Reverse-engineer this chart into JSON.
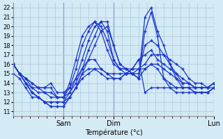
{
  "title": "Température (°c)",
  "ylabel_ticks": [
    11,
    12,
    13,
    14,
    15,
    16,
    17,
    18,
    19,
    20,
    21,
    22
  ],
  "ylim": [
    10.5,
    22.5
  ],
  "xlim": [
    0,
    96
  ],
  "x_ticks": [
    24,
    48,
    96
  ],
  "x_tick_labels": [
    "Sam",
    "Dim",
    "Lun"
  ],
  "background_color": "#d4eaf5",
  "grid_color": "#a8c8dc",
  "line_color": "#1a35cc",
  "marker": "+",
  "series": [
    {
      "x": [
        0,
        3,
        6,
        9,
        12,
        15,
        18,
        21,
        24,
        27,
        30,
        33,
        36,
        39,
        42,
        45,
        48,
        51,
        54,
        57,
        60,
        63,
        66,
        69,
        72,
        75,
        78,
        81,
        84,
        87,
        90,
        93,
        96
      ],
      "y": [
        16.0,
        15.0,
        14.5,
        14.0,
        13.5,
        13.5,
        14.0,
        13.0,
        13.0,
        13.5,
        14.5,
        15.5,
        17.5,
        19.0,
        20.5,
        20.5,
        18.0,
        16.0,
        15.5,
        15.0,
        14.5,
        21.0,
        22.0,
        19.5,
        18.0,
        16.0,
        14.5,
        13.5,
        13.5,
        13.0,
        13.0,
        13.0,
        13.5
      ]
    },
    {
      "x": [
        0,
        3,
        6,
        9,
        12,
        15,
        18,
        21,
        24,
        27,
        30,
        33,
        36,
        39,
        42,
        45,
        48,
        51,
        54,
        57,
        60,
        63,
        66,
        69,
        72,
        75,
        78,
        81,
        84,
        87,
        90,
        93,
        96
      ],
      "y": [
        16.0,
        15.0,
        14.5,
        13.5,
        13.5,
        13.5,
        13.5,
        12.5,
        12.5,
        14.0,
        16.5,
        19.0,
        20.0,
        20.5,
        20.0,
        18.5,
        16.5,
        15.5,
        15.0,
        15.0,
        15.0,
        18.0,
        18.5,
        18.0,
        17.0,
        16.0,
        15.0,
        14.0,
        14.0,
        13.5,
        13.5,
        13.5,
        13.5
      ]
    },
    {
      "x": [
        0,
        3,
        6,
        9,
        12,
        15,
        18,
        21,
        24,
        27,
        30,
        33,
        36,
        39,
        42,
        45,
        48,
        51,
        54,
        57,
        60,
        63,
        66,
        69,
        72,
        75,
        78,
        81,
        84,
        87,
        90,
        93,
        96
      ],
      "y": [
        16.0,
        15.0,
        14.0,
        13.5,
        13.0,
        13.0,
        13.0,
        12.5,
        12.5,
        13.5,
        15.5,
        18.0,
        19.5,
        20.5,
        19.5,
        17.5,
        16.0,
        15.5,
        15.5,
        15.5,
        15.5,
        15.5,
        16.0,
        16.0,
        15.5,
        15.0,
        14.5,
        14.0,
        14.0,
        13.5,
        13.5,
        13.5,
        14.0
      ]
    },
    {
      "x": [
        0,
        3,
        6,
        9,
        12,
        15,
        18,
        21,
        24,
        27,
        30,
        33,
        36,
        39,
        42,
        45,
        48,
        51,
        54,
        57,
        60,
        63,
        66,
        69,
        72,
        75,
        78,
        81,
        84,
        87,
        90,
        93,
        96
      ],
      "y": [
        16.0,
        15.0,
        14.0,
        13.0,
        12.5,
        12.0,
        12.0,
        12.0,
        12.0,
        13.0,
        14.0,
        15.5,
        16.5,
        16.5,
        15.5,
        15.0,
        15.0,
        15.0,
        15.0,
        15.0,
        15.5,
        16.0,
        17.0,
        17.0,
        17.0,
        16.5,
        16.0,
        15.5,
        14.5,
        14.0,
        14.0,
        13.5,
        14.0
      ]
    },
    {
      "x": [
        0,
        3,
        6,
        9,
        12,
        15,
        18,
        21,
        24,
        27,
        30,
        33,
        36,
        39,
        42,
        45,
        48,
        51,
        54,
        57,
        60,
        63,
        66,
        69,
        72,
        75,
        78,
        81,
        84,
        87,
        90,
        93,
        96
      ],
      "y": [
        16.0,
        15.0,
        14.0,
        13.0,
        12.5,
        12.0,
        11.5,
        11.5,
        11.5,
        12.5,
        13.5,
        15.0,
        15.5,
        15.5,
        15.0,
        14.5,
        14.5,
        14.5,
        15.0,
        15.5,
        16.5,
        17.0,
        17.5,
        16.5,
        16.0,
        15.5,
        15.0,
        14.5,
        14.0,
        13.5,
        13.5,
        13.5,
        14.0
      ]
    },
    {
      "x": [
        0,
        3,
        6,
        9,
        12,
        15,
        18,
        21,
        24,
        27,
        30,
        33,
        36,
        39,
        42,
        45,
        48,
        51,
        54,
        57,
        60,
        63,
        66,
        69,
        72,
        75,
        78,
        81,
        84,
        87,
        90,
        93,
        96
      ],
      "y": [
        16.0,
        15.0,
        14.0,
        13.0,
        12.5,
        12.0,
        11.5,
        11.5,
        11.5,
        12.5,
        13.5,
        14.5,
        15.0,
        15.5,
        15.5,
        15.0,
        14.5,
        14.5,
        15.0,
        15.5,
        16.5,
        13.0,
        13.5,
        13.5,
        13.5,
        13.5,
        13.5,
        13.5,
        13.5,
        13.5,
        13.5,
        13.5,
        14.0
      ]
    },
    {
      "x": [
        0,
        3,
        6,
        9,
        12,
        15,
        18,
        21,
        24,
        27,
        30,
        33,
        36,
        39,
        42,
        45,
        48,
        51,
        54,
        57,
        60,
        63,
        66,
        69,
        72,
        75,
        78,
        81,
        84,
        87,
        90,
        93,
        96
      ],
      "y": [
        15.0,
        14.5,
        13.5,
        12.5,
        12.5,
        12.0,
        12.0,
        12.0,
        12.0,
        12.5,
        13.5,
        15.0,
        16.5,
        18.0,
        19.5,
        20.0,
        18.0,
        16.0,
        15.5,
        15.0,
        14.5,
        19.5,
        21.5,
        19.0,
        14.5,
        13.5,
        13.0,
        13.0,
        13.0,
        13.0,
        13.0,
        13.0,
        13.5
      ]
    },
    {
      "x": [
        0,
        3,
        6,
        9,
        12,
        15,
        18,
        21,
        24,
        27,
        30,
        33,
        36,
        39,
        42,
        45,
        48,
        51,
        54,
        57,
        60,
        63,
        66,
        69,
        72,
        75,
        78,
        81,
        84,
        87,
        90,
        93,
        96
      ],
      "y": [
        16.0,
        15.0,
        14.5,
        14.0,
        13.5,
        13.0,
        12.5,
        12.5,
        12.5,
        13.0,
        14.5,
        16.5,
        18.5,
        20.0,
        20.5,
        19.5,
        16.5,
        15.5,
        15.5,
        15.0,
        14.5,
        15.5,
        16.0,
        15.5,
        14.5,
        14.0,
        13.5,
        13.5,
        13.5,
        13.0,
        13.0,
        13.0,
        13.5
      ]
    }
  ]
}
